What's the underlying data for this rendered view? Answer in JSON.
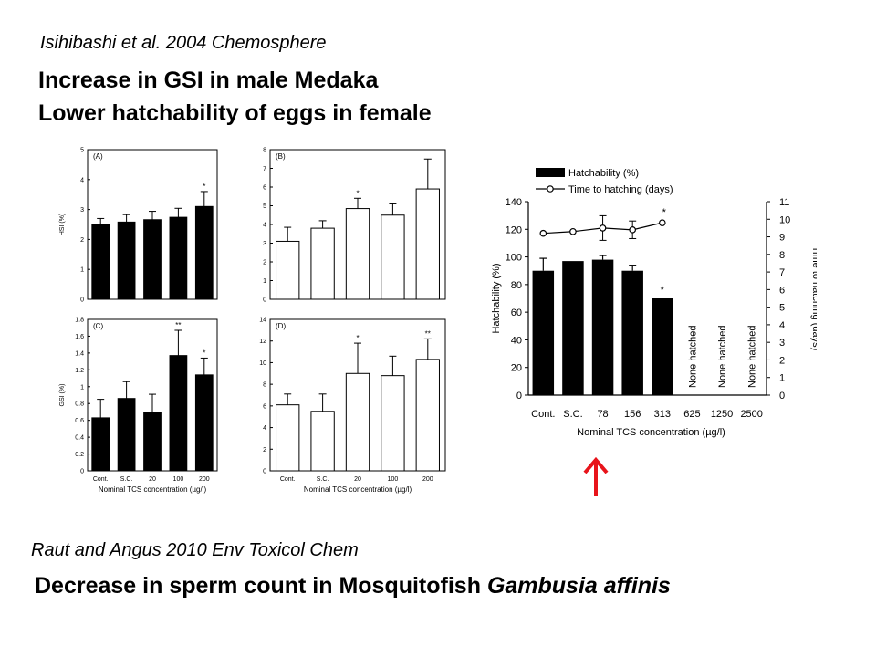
{
  "slide": {
    "citation_top": "Isihibashi et al. 2004 Chemosphere",
    "heading_1": "Increase in GSI in male Medaka",
    "heading_2": "Lower hatchability of eggs in female",
    "citation_bottom": "Raut and Angus 2010 Env Toxicol Chem",
    "heading_bottom_main": "Decrease in sperm count in Mosquitofish ",
    "heading_bottom_species": "Gambusia affinis",
    "arrow_color": "#e8141b"
  },
  "chart_data": [
    {
      "panel": "A",
      "type": "bar",
      "fill": "#000000",
      "ylabel": "HSI (%)",
      "ylim": [
        0,
        5
      ],
      "yticks": [
        0,
        1,
        2,
        3,
        4,
        5
      ],
      "categories": [
        "Cont.",
        "S.C.",
        "20",
        "100",
        "200"
      ],
      "values": [
        2.5,
        2.58,
        2.66,
        2.74,
        3.1
      ],
      "errors": [
        0.2,
        0.25,
        0.28,
        0.3,
        0.5
      ],
      "annotations": [
        "",
        "",
        "",
        "",
        "*"
      ],
      "show_xticklabels": false
    },
    {
      "panel": "B",
      "type": "bar",
      "fill": "#ffffff",
      "ylabel": "",
      "ylim": [
        0,
        8
      ],
      "yticks": [
        0,
        1,
        2,
        3,
        4,
        5,
        6,
        7,
        8
      ],
      "categories": [
        "Cont.",
        "S.C.",
        "20",
        "100",
        "200"
      ],
      "values": [
        3.1,
        3.8,
        4.85,
        4.5,
        5.9
      ],
      "errors": [
        0.75,
        0.4,
        0.55,
        0.6,
        1.6
      ],
      "annotations": [
        "",
        "",
        "*",
        "",
        ""
      ],
      "show_xticklabels": false
    },
    {
      "panel": "C",
      "type": "bar",
      "fill": "#000000",
      "ylabel": "GSI (%)",
      "ylim": [
        0,
        1.8
      ],
      "yticks": [
        0,
        0.2,
        0.4,
        0.6,
        0.8,
        1,
        1.2,
        1.4,
        1.6,
        1.8
      ],
      "categories": [
        "Cont.",
        "S.C.",
        "20",
        "100",
        "200"
      ],
      "values": [
        0.63,
        0.86,
        0.69,
        1.37,
        1.14
      ],
      "errors": [
        0.22,
        0.2,
        0.22,
        0.3,
        0.2
      ],
      "annotations": [
        "",
        "",
        "",
        "**",
        "*"
      ],
      "xlabel": "Nominal TCS concentration (µg/l)",
      "show_xticklabels": true
    },
    {
      "panel": "D",
      "type": "bar",
      "fill": "#ffffff",
      "ylabel": "",
      "ylim": [
        0,
        14
      ],
      "yticks": [
        0,
        2,
        4,
        6,
        8,
        10,
        12,
        14
      ],
      "categories": [
        "Cont.",
        "S.C.",
        "20",
        "100",
        "200"
      ],
      "values": [
        6.1,
        5.5,
        9.0,
        8.8,
        10.3
      ],
      "errors": [
        1.0,
        1.6,
        2.8,
        1.8,
        1.9
      ],
      "annotations": [
        "",
        "",
        "*",
        "",
        "**"
      ],
      "xlabel": "Nominal TCS concentration (µg/l)",
      "show_xticklabels": true
    },
    {
      "panel": "hatch",
      "type": "bar+line",
      "categories": [
        "Cont.",
        "S.C.",
        "78",
        "156",
        "313",
        "625",
        "1250",
        "2500"
      ],
      "xlabel": "Nominal TCS concentration (µg/l)",
      "ylabel": "Hatchability (%)",
      "ylim": [
        0,
        140
      ],
      "yticks": [
        0,
        20,
        40,
        60,
        80,
        100,
        120,
        140
      ],
      "y2label": "Time to hatching (days)",
      "y2lim": [
        0,
        11
      ],
      "y2ticks": [
        0,
        1,
        2,
        3,
        4,
        5,
        6,
        7,
        8,
        9,
        10,
        11
      ],
      "bars": {
        "name": "Hatchability (%)",
        "values": [
          90,
          97,
          98,
          90,
          70,
          null,
          null,
          null
        ],
        "errors": [
          9,
          0,
          3,
          4,
          0,
          0,
          0,
          0
        ],
        "annotations": [
          "",
          "",
          "",
          "",
          "*",
          "",
          "",
          ""
        ],
        "missing_labels": [
          "",
          "",
          "",
          "",
          "",
          "None hatched",
          "None hatched",
          "None hatched"
        ]
      },
      "line": {
        "name": "Time to hatching (days)",
        "values": [
          9.2,
          9.3,
          9.5,
          9.4,
          9.8,
          null,
          null,
          null
        ],
        "errors": [
          0,
          0,
          0.7,
          0.5,
          0,
          0,
          0,
          0
        ],
        "annotations": [
          "",
          "",
          "",
          "",
          "*",
          "",
          "",
          ""
        ]
      },
      "legend": "top-left"
    }
  ]
}
